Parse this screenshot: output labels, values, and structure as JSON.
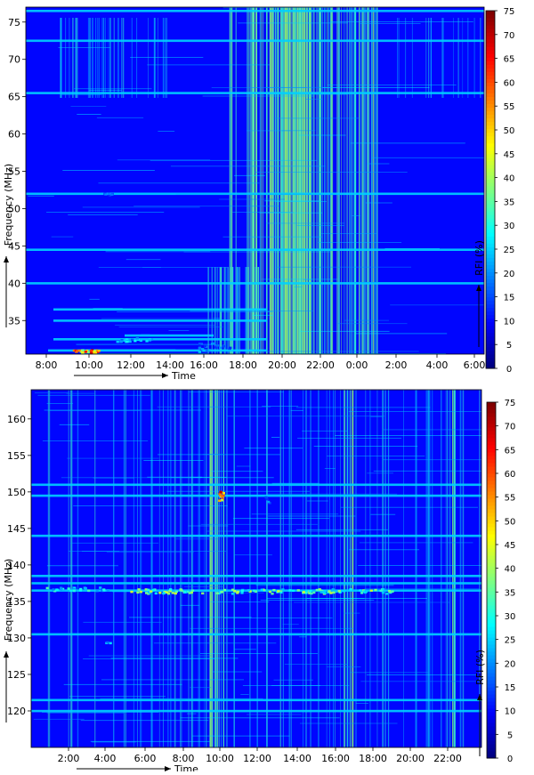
{
  "chart_data": [
    {
      "type": "heatmap",
      "xlabel": "Time",
      "ylabel": "Frequency (MHz)",
      "x_ticks": [
        "8:00",
        "10:00",
        "12:00",
        "14:00",
        "16:00",
        "18:00",
        "20:00",
        "22:00",
        "0:00",
        "2:00",
        "4:00",
        "6:00"
      ],
      "y_ticks": [
        35,
        40,
        45,
        50,
        55,
        60,
        65,
        70,
        75
      ],
      "ylim": [
        30.5,
        77
      ],
      "colorbar": {
        "label": "RFI (%)",
        "ticks": [
          0,
          5,
          10,
          15,
          20,
          25,
          30,
          35,
          40,
          45,
          50,
          55,
          60,
          65,
          70,
          75
        ],
        "range": [
          0,
          75
        ]
      },
      "hot_bands_mhz": [
        31,
        32.5,
        33,
        35,
        36.5,
        40,
        44.5,
        52,
        65.5,
        72.5,
        76.5
      ],
      "hot_period": [
        "18:00",
        "0:00"
      ],
      "peak_value": {
        "time": "10:30",
        "freq_mhz": 31,
        "value": 75
      }
    },
    {
      "type": "heatmap",
      "xlabel": "Time",
      "ylabel": "Frequency (MHz)",
      "x_ticks": [
        "2:00",
        "4:00",
        "6:00",
        "8:00",
        "10:00",
        "12:00",
        "14:00",
        "16:00",
        "18:00",
        "20:00",
        "22:00"
      ],
      "y_ticks": [
        120,
        125,
        130,
        135,
        140,
        145,
        150,
        155,
        160
      ],
      "ylim": [
        115,
        164
      ],
      "colorbar": {
        "label": "RFI (%)",
        "ticks": [
          0,
          5,
          10,
          15,
          20,
          25,
          30,
          35,
          40,
          45,
          50,
          55,
          60,
          65,
          70,
          75
        ],
        "range": [
          0,
          75
        ]
      },
      "hot_bands_mhz": [
        120,
        121.5,
        130.5,
        136.5,
        137.5,
        138.5,
        144,
        149.5,
        151
      ],
      "peak_value": {
        "time": "10:00",
        "freq_mhz": 149.5,
        "value": 75
      }
    }
  ]
}
